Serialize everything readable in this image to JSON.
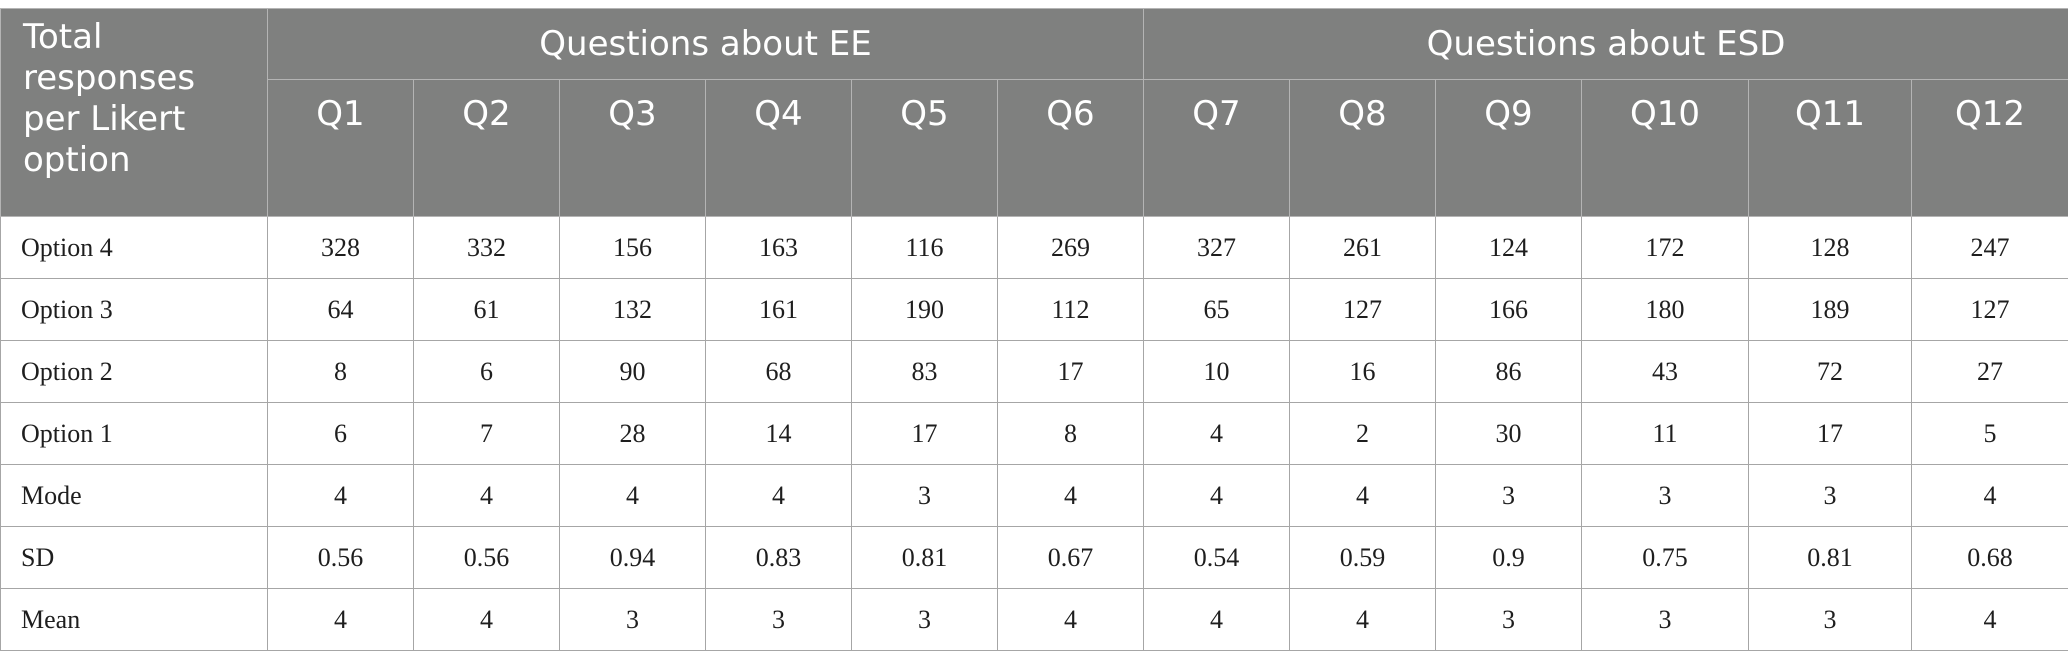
{
  "table": {
    "corner_label": "Total responses per Likert option",
    "groups": [
      {
        "label": "Questions about EE",
        "span": 6
      },
      {
        "label": "Questions about ESD",
        "span": 6
      }
    ],
    "columns": [
      "Q1",
      "Q2",
      "Q3",
      "Q4",
      "Q5",
      "Q6",
      "Q7",
      "Q8",
      "Q9",
      "Q10",
      "Q11",
      "Q12"
    ],
    "rows": [
      {
        "label": "Option 4",
        "values": [
          "328",
          "332",
          "156",
          "163",
          "116",
          "269",
          "327",
          "261",
          "124",
          "172",
          "128",
          "247"
        ]
      },
      {
        "label": "Option 3",
        "values": [
          "64",
          "61",
          "132",
          "161",
          "190",
          "112",
          "65",
          "127",
          "166",
          "180",
          "189",
          "127"
        ]
      },
      {
        "label": "Option 2",
        "values": [
          "8",
          "6",
          "90",
          "68",
          "83",
          "17",
          "10",
          "16",
          "86",
          "43",
          "72",
          "27"
        ]
      },
      {
        "label": "Option 1",
        "values": [
          "6",
          "7",
          "28",
          "14",
          "17",
          "8",
          "4",
          "2",
          "30",
          "11",
          "17",
          "5"
        ]
      },
      {
        "label": "Mode",
        "values": [
          "4",
          "4",
          "4",
          "4",
          "3",
          "4",
          "4",
          "4",
          "3",
          "3",
          "3",
          "4"
        ]
      },
      {
        "label": "SD",
        "values": [
          "0.56",
          "0.56",
          "0.94",
          "0.83",
          "0.81",
          "0.67",
          "0.54",
          "0.59",
          "0.9",
          "0.75",
          "0.81",
          "0.68"
        ]
      },
      {
        "label": "Mean",
        "values": [
          "4",
          "4",
          "3",
          "3",
          "3",
          "4",
          "4",
          "4",
          "3",
          "3",
          "3",
          "4"
        ]
      }
    ],
    "colors": {
      "header_background": "#7f807f",
      "header_text": "#ffffff",
      "grid_line": "#a6a6a6",
      "body_text": "#1e1e1e"
    }
  }
}
